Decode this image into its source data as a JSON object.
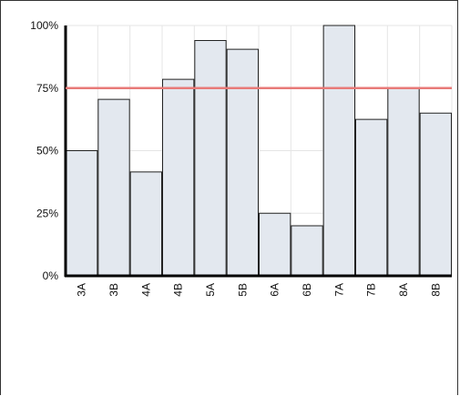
{
  "chart_data": {
    "type": "bar",
    "categories": [
      "3A",
      "3B",
      "4A",
      "4B",
      "5A",
      "5B",
      "6A",
      "6B",
      "7A",
      "7B",
      "8A",
      "8B"
    ],
    "values": [
      50,
      70.5,
      41.5,
      78.5,
      94,
      90.5,
      25,
      20,
      100,
      62.5,
      75,
      65
    ],
    "ylim": [
      0,
      100
    ],
    "yticks": [
      "0%",
      "25%",
      "50%",
      "75%",
      "100%"
    ],
    "ytick_values": [
      0,
      25,
      50,
      75,
      100
    ],
    "reference_line": 75,
    "grid": true,
    "colors": {
      "bar_fill": "#e3e8ef",
      "bar_stroke": "#222222",
      "reference_line": "#e87a78",
      "grid": "#e5e5e5",
      "axis": "#000000"
    }
  }
}
